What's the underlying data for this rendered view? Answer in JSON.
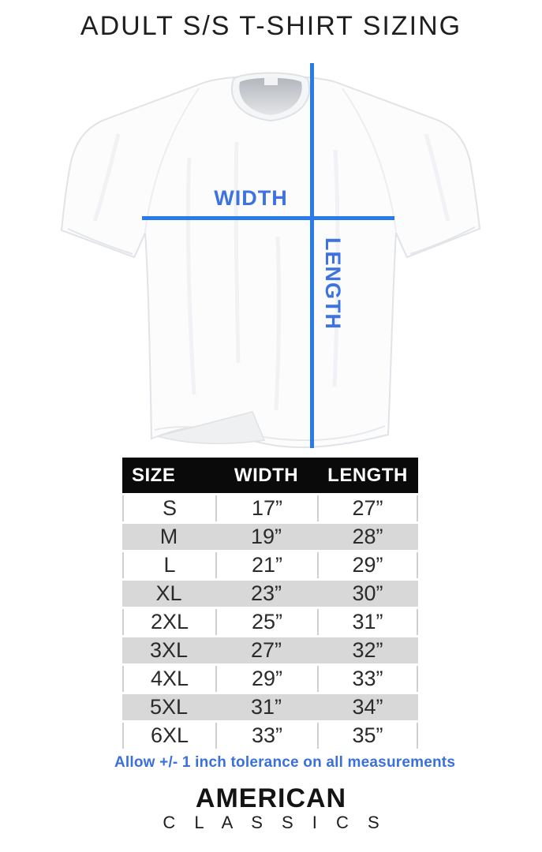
{
  "page": {
    "title": "ADULT S/S T-SHIRT SIZING"
  },
  "diagram": {
    "width_label": "WIDTH",
    "length_label": "LENGTH"
  },
  "size_table": {
    "columns": [
      "SIZE",
      "WIDTH",
      "LENGTH"
    ],
    "rows": [
      {
        "size": "S",
        "width": "17”",
        "length": "27”"
      },
      {
        "size": "M",
        "width": "19”",
        "length": "28”"
      },
      {
        "size": "L",
        "width": "21”",
        "length": "29”"
      },
      {
        "size": "XL",
        "width": "23”",
        "length": "30”"
      },
      {
        "size": "2XL",
        "width": "25”",
        "length": "31”"
      },
      {
        "size": "3XL",
        "width": "27”",
        "length": "32”"
      },
      {
        "size": "4XL",
        "width": "29”",
        "length": "33”"
      },
      {
        "size": "5XL",
        "width": "31”",
        "length": "34”"
      },
      {
        "size": "6XL",
        "width": "33”",
        "length": "35”"
      }
    ]
  },
  "tolerance_note": "Allow +/- 1 inch tolerance on all measurements",
  "brand": {
    "line1": "AMERICAN",
    "line2": "C L A S S I C S"
  },
  "colors": {
    "measure_line_blue": "#2a7ae8",
    "label_blue": "#3c73e0",
    "note_blue": "#3a70dc",
    "header_bg": "#0a0a0a",
    "row_gray": "#d8d8d8"
  }
}
